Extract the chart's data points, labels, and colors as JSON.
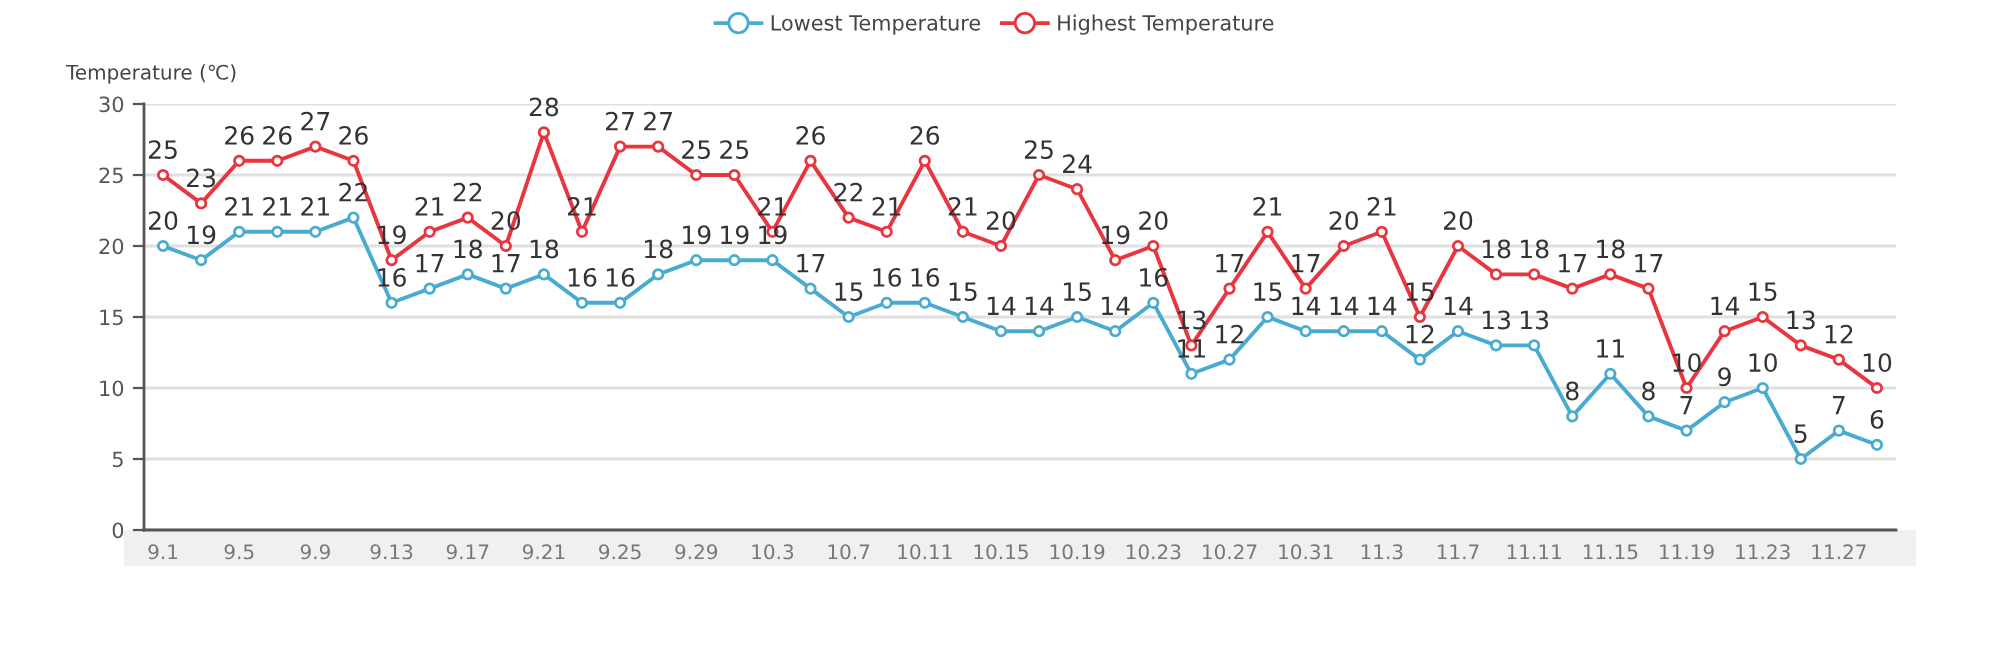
{
  "chart_data": {
    "type": "line",
    "ylabel": "Temperature (℃)",
    "categories": [
      "9.1",
      null,
      "9.5",
      null,
      "9.9",
      null,
      "9.13",
      null,
      "9.17",
      null,
      "9.21",
      null,
      "9.25",
      null,
      "9.29",
      null,
      "10.3",
      null,
      "10.7",
      null,
      "10.11",
      null,
      "10.15",
      null,
      "10.19",
      null,
      "10.23",
      null,
      "10.27",
      null,
      "10.31",
      null,
      "11.3",
      null,
      "11.7",
      null,
      "11.11",
      null,
      "11.15",
      null,
      "11.19",
      null,
      "11.23",
      null,
      "11.27",
      null
    ],
    "ylim": [
      0,
      30
    ],
    "yticks": [
      0,
      5,
      10,
      15,
      20,
      25,
      30
    ],
    "grid": "y",
    "legend": "top",
    "marker": "circle",
    "line_style": "solid",
    "data_labels": true,
    "series": [
      {
        "name": "Lowest Temperature",
        "color": "#4aabd1",
        "values": [
          20,
          19,
          21,
          21,
          21,
          22,
          16,
          17,
          18,
          17,
          18,
          16,
          16,
          18,
          19,
          19,
          19,
          17,
          15,
          16,
          16,
          15,
          14,
          14,
          15,
          14,
          16,
          11,
          12,
          15,
          14,
          14,
          14,
          12,
          14,
          13,
          13,
          8,
          11,
          8,
          7,
          9,
          10,
          5,
          7,
          6
        ]
      },
      {
        "name": "Highest Temperature",
        "color": "#e8353e",
        "values": [
          25,
          23,
          26,
          26,
          27,
          26,
          19,
          21,
          22,
          20,
          28,
          21,
          27,
          27,
          25,
          25,
          21,
          26,
          22,
          21,
          26,
          21,
          20,
          25,
          24,
          19,
          20,
          13,
          17,
          21,
          17,
          20,
          21,
          15,
          20,
          18,
          18,
          17,
          18,
          17,
          10,
          14,
          15,
          13,
          12,
          10
        ]
      }
    ]
  }
}
